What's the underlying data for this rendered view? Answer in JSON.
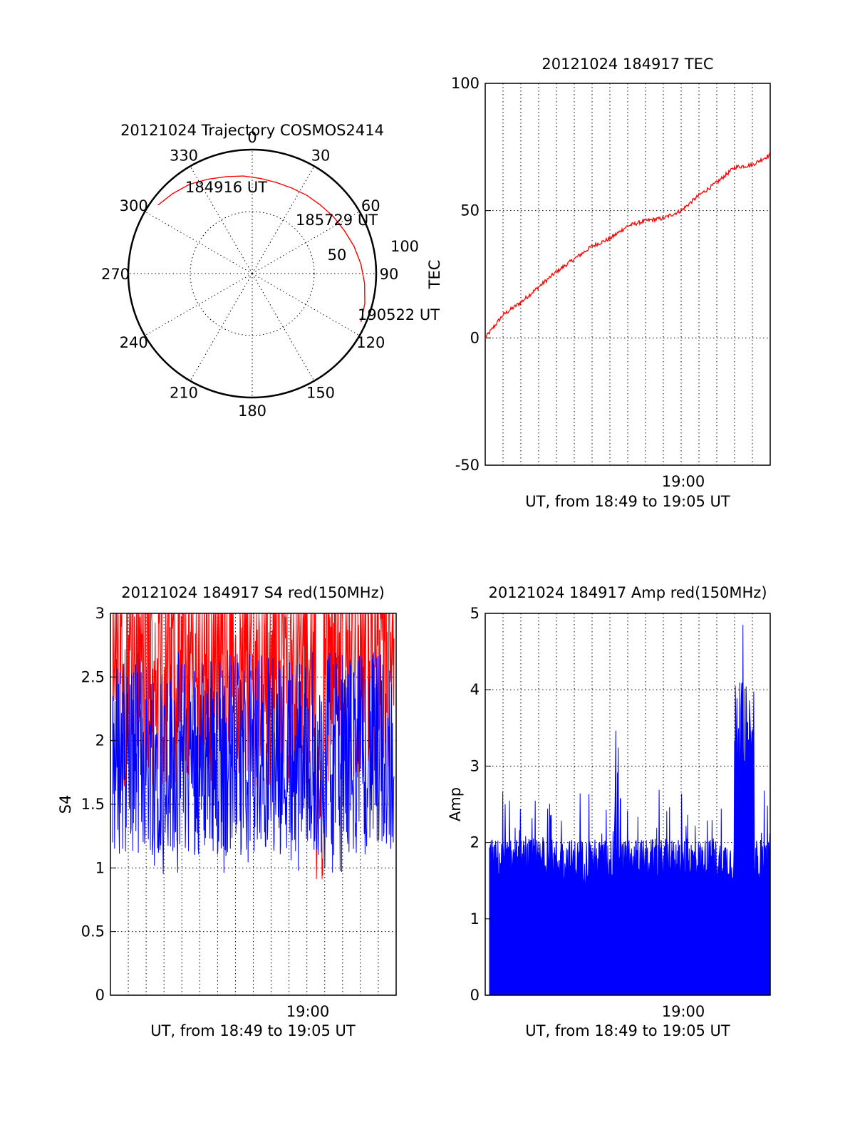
{
  "chart_data": [
    {
      "id": "trajectory",
      "type": "scatter",
      "subtype": "polar",
      "title": "20121024 Trajectory COSMOS2414",
      "azimuth_labels": [
        "0",
        "30",
        "60",
        "90",
        "120",
        "150",
        "180",
        "210",
        "240",
        "270",
        "300",
        "330"
      ],
      "radius_labels": [
        "50",
        "100"
      ],
      "grid": true,
      "track": {
        "color": "#ff0000",
        "azimuth_deg": [
          306,
          315,
          325,
          335,
          345,
          355,
          5,
          15,
          25,
          35,
          45,
          55,
          65,
          75,
          85,
          95,
          105,
          114
        ],
        "zenith_deg": [
          94,
          91,
          88,
          84,
          81,
          79,
          77,
          76,
          76,
          77,
          78,
          80,
          82,
          85,
          88,
          91,
          94,
          96
        ]
      },
      "annotations": [
        {
          "text": "184916 UT",
          "azimuth_deg": 306,
          "zenith_deg": 94
        },
        {
          "text": "185729 UT",
          "azimuth_deg": 52,
          "zenith_deg": 79
        },
        {
          "text": "190522 UT",
          "azimuth_deg": 114,
          "zenith_deg": 96
        }
      ]
    },
    {
      "id": "tec",
      "type": "line",
      "title": "20121024 184917 TEC",
      "xlabel": "UT, from 18:49 to 19:05 UT",
      "ylabel": "TEC",
      "x_range": [
        "18:49",
        "19:05"
      ],
      "ylim": [
        -50,
        100
      ],
      "yticks": [
        "-50",
        "0",
        "50",
        "100"
      ],
      "xticks": [
        "19:00"
      ],
      "grid": true,
      "series": [
        {
          "color": "#ff0000",
          "x_min": [
            0,
            1,
            2,
            3,
            4,
            5,
            6,
            7,
            8,
            9,
            10,
            11,
            12,
            13,
            14,
            15,
            16
          ],
          "y": [
            0,
            9,
            14,
            20,
            26,
            31,
            36,
            39,
            44,
            46,
            47,
            50,
            56,
            61,
            67,
            68,
            72
          ]
        }
      ]
    },
    {
      "id": "s4",
      "type": "line",
      "title": "20121024 184917 S4 red(150MHz)",
      "xlabel": "UT, from 18:49 to 19:05 UT",
      "ylabel": "S4",
      "x_range": [
        "18:49",
        "19:05"
      ],
      "ylim": [
        0,
        3
      ],
      "yticks": [
        "0",
        "0.5",
        "1",
        "1.5",
        "2",
        "2.5",
        "3"
      ],
      "xticks": [
        "19:00"
      ],
      "grid": true,
      "series": [
        {
          "color": "#ff0000",
          "y_range": [
            0.7,
            3
          ]
        },
        {
          "color": "#0000ff",
          "y_range": [
            0.9,
            3
          ]
        }
      ]
    },
    {
      "id": "amp",
      "type": "area",
      "title": "20121024 184917 Amp red(150MHz)",
      "xlabel": "UT, from 18:49 to 19:05 UT",
      "ylabel": "Amp",
      "x_range": [
        "18:49",
        "19:05"
      ],
      "ylim": [
        0,
        5
      ],
      "yticks": [
        "0",
        "1",
        "2",
        "3",
        "4",
        "5"
      ],
      "xticks": [
        "19:00"
      ],
      "grid": true,
      "series": [
        {
          "color": "#0000ff",
          "baseline_range": [
            1.4,
            2.2
          ],
          "peak": 4.85
        }
      ]
    }
  ]
}
